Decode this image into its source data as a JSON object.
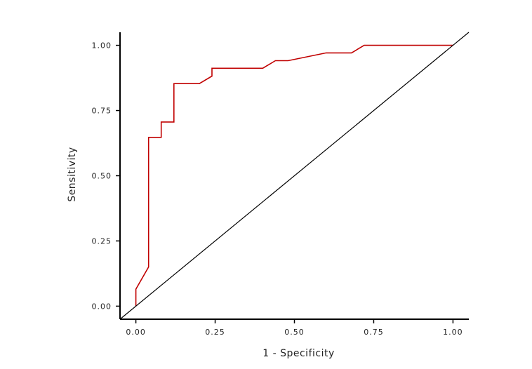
{
  "chart_data": {
    "type": "line",
    "title": "",
    "xlabel": "1 - Specificity",
    "ylabel": "Sensitivity",
    "xlim": [
      -0.05,
      1.05
    ],
    "ylim": [
      -0.05,
      1.05
    ],
    "x_ticks": [
      0,
      0.25,
      0.5,
      0.75,
      1
    ],
    "y_ticks": [
      0,
      0.25,
      0.5,
      0.75,
      1
    ],
    "x_tick_labels": [
      "0.00",
      "0.25",
      "0.50",
      "0.75",
      "1.00"
    ],
    "y_tick_labels": [
      "0.00",
      "0.25",
      "0.50",
      "0.75",
      "1.00"
    ],
    "grid": false,
    "series": [
      {
        "color": "#c00000",
        "x": [
          0,
          0,
          0.04,
          0.04,
          0.08,
          0.08,
          0.12,
          0.12,
          0.2,
          0.24,
          0.24,
          0.4,
          0.44,
          0.48,
          0.6,
          0.68,
          0.72,
          1.0
        ],
        "y": [
          0,
          0.065,
          0.15,
          0.647,
          0.647,
          0.706,
          0.706,
          0.853,
          0.853,
          0.882,
          0.912,
          0.912,
          0.941,
          0.941,
          0.971,
          0.971,
          1.0,
          1.0
        ]
      },
      {
        "color": "#000000",
        "x": [
          -0.05,
          1.05
        ],
        "y": [
          -0.05,
          1.05
        ]
      }
    ]
  }
}
